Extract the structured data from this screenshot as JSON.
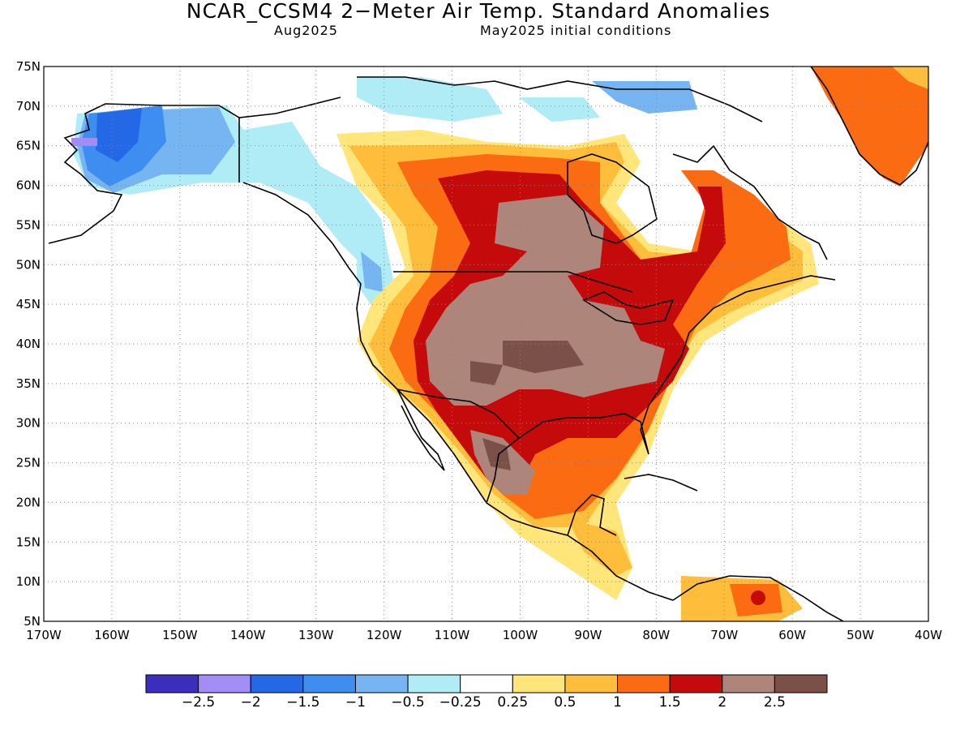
{
  "title": "NCAR_CCSM4 2−Meter Air Temp. Standard Anomalies",
  "subtitle_left": "Aug2025",
  "subtitle_right": "May2025 initial conditions",
  "map": {
    "lon_range": [
      -170,
      -40
    ],
    "lat_range": [
      5,
      75
    ],
    "lat_ticks": [
      "75N",
      "70N",
      "65N",
      "60N",
      "55N",
      "50N",
      "45N",
      "40N",
      "35N",
      "30N",
      "25N",
      "20N",
      "15N",
      "10N",
      "5N"
    ],
    "lon_ticks": [
      "170W",
      "160W",
      "150W",
      "140W",
      "130W",
      "120W",
      "110W",
      "100W",
      "90W",
      "80W",
      "70W",
      "60W",
      "50W",
      "40W"
    ],
    "grid": "dotted"
  },
  "colorbar": {
    "colors": [
      "#3b2ebd",
      "#a28df7",
      "#2468e6",
      "#3d8ef0",
      "#77b5f2",
      "#b0ecf5",
      "#ffffff",
      "#ffe57a",
      "#ffbd3c",
      "#fb6b12",
      "#c40a0a",
      "#ad857a",
      "#7b5048"
    ],
    "labels": [
      "−2.5",
      "−2",
      "−1.5",
      "−1",
      "−0.5",
      "−0.25",
      "0.25",
      "0.5",
      "1",
      "1.5",
      "2",
      "2.5"
    ]
  }
}
